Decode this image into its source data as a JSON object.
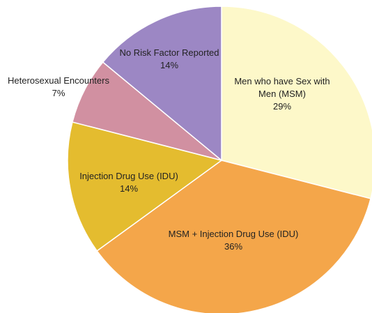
{
  "chart_data": {
    "type": "pie",
    "categories": [
      "Men who have Sex with Men (MSM)",
      "MSM + Injection Drug Use (IDU)",
      "Injection Drug Use (IDU)",
      "Heterosexual Encounters",
      "No Risk Factor Reported"
    ],
    "values": [
      29,
      36,
      14,
      7,
      14
    ],
    "value_labels": [
      "29%",
      "36%",
      "14%",
      "7%",
      "14%"
    ],
    "colors": [
      "#fdf8c9",
      "#f4a64a",
      "#e4bc2f",
      "#d190a1",
      "#9c87c4"
    ]
  }
}
